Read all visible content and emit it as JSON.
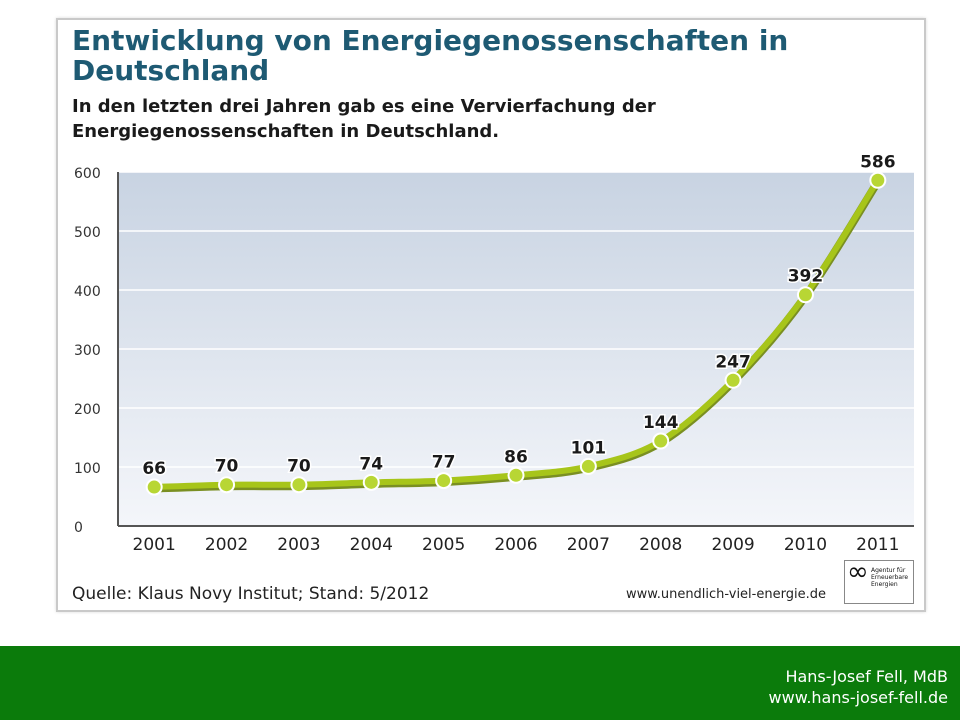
{
  "title": "Entwicklung von Energiegenossenschaften in Deutschland",
  "subtitle": "In den letzten drei Jahren gab es eine Vervierfachung der Energiegenossenschaften in Deutschland.",
  "source": "Quelle: Klaus Novy Institut; Stand: 5/2012",
  "url": "www.unendlich-viel-energie.de",
  "logo": {
    "symbol": "∞",
    "text": "Agentur für Erneuerbare Energien"
  },
  "footer": {
    "name": "Hans-Josef Fell, MdB",
    "url": "www.hans-josef-fell.de"
  },
  "chart_data": {
    "type": "line",
    "title": "",
    "xlabel": "",
    "ylabel": "",
    "categories": [
      "2001",
      "2002",
      "2003",
      "2004",
      "2005",
      "2006",
      "2007",
      "2008",
      "2009",
      "2010",
      "2011"
    ],
    "values": [
      66,
      70,
      70,
      74,
      77,
      86,
      101,
      144,
      247,
      392,
      586
    ],
    "ylim": [
      0,
      600
    ],
    "yticks": [
      0,
      100,
      200,
      300,
      400,
      500,
      600
    ],
    "grid": true,
    "colors": {
      "line": "#a7c51a",
      "line_shadow": "#7a8f22",
      "marker": "#b8d634",
      "marker_outline": "#ffffff",
      "plot_bg_top": "#c8d3e2",
      "plot_bg_bottom": "#f4f6fa",
      "grid": "#ffffff",
      "axis": "#555555"
    }
  }
}
